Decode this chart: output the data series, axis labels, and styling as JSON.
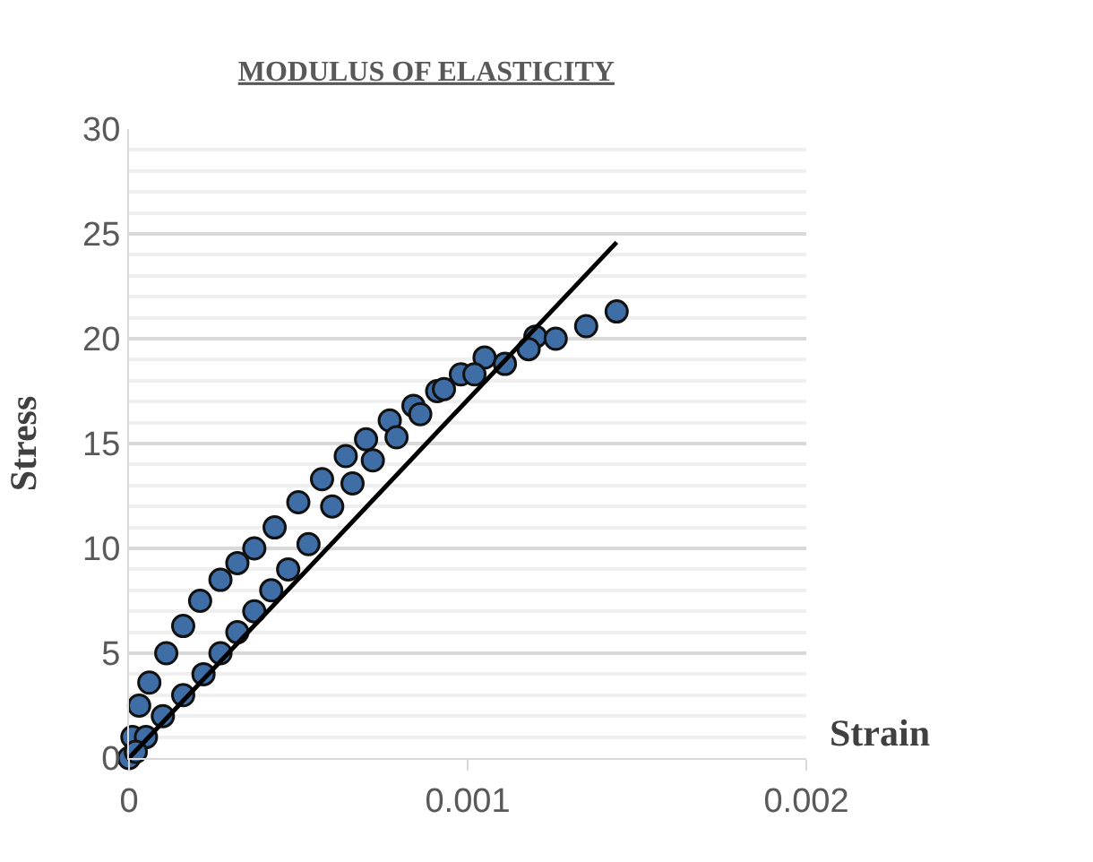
{
  "chart_data": {
    "type": "scatter",
    "title": "MODULUS OF ELASTICITY",
    "xlabel": "Strain",
    "ylabel": "Stress",
    "xlim": [
      0,
      0.002
    ],
    "xticks": [
      0,
      0.001,
      0.002
    ],
    "ylim": [
      0,
      30
    ],
    "yticks": [
      0,
      5,
      10,
      15,
      20,
      25,
      30
    ],
    "grid": "y",
    "marker": "circle",
    "series": [
      {
        "color": "#3f6ea6",
        "x": [
          0,
          1e-05,
          3e-05,
          6e-05,
          0.00011,
          0.00016,
          0.00021,
          0.00027,
          0.00032,
          0.00037,
          0.00043,
          0.0005,
          0.00057,
          0.00064,
          0.0007,
          0.00077,
          0.00084,
          0.00091,
          0.00098,
          0.00105,
          0.0012,
          0.00144,
          0.00135,
          0.00126,
          0.00118,
          0.00111,
          0.00102,
          0.00093,
          0.00086,
          0.00079,
          0.00072,
          0.00066,
          0.0006,
          0.00053,
          0.00047,
          0.00042,
          0.00037,
          0.00032,
          0.00027,
          0.00022,
          0.00016,
          0.0001,
          5e-05,
          2e-05
        ],
        "values": [
          0,
          1,
          2.5,
          3.6,
          5,
          6.3,
          7.5,
          8.5,
          9.3,
          10,
          11,
          12.2,
          13.3,
          14.4,
          15.2,
          16.1,
          16.8,
          17.5,
          18.3,
          19.1,
          20.1,
          21.3,
          20.6,
          20,
          19.5,
          18.8,
          18.3,
          17.6,
          16.4,
          15.3,
          14.2,
          13.1,
          12,
          10.2,
          9,
          8,
          7,
          6,
          5,
          4,
          3,
          2,
          1,
          0.3
        ]
      },
      {
        "type": "line",
        "color": "#000000",
        "x": [
          0,
          0.00144
        ],
        "values": [
          0,
          24.6
        ],
        "marker": "none",
        "line_style": "solid"
      }
    ]
  }
}
